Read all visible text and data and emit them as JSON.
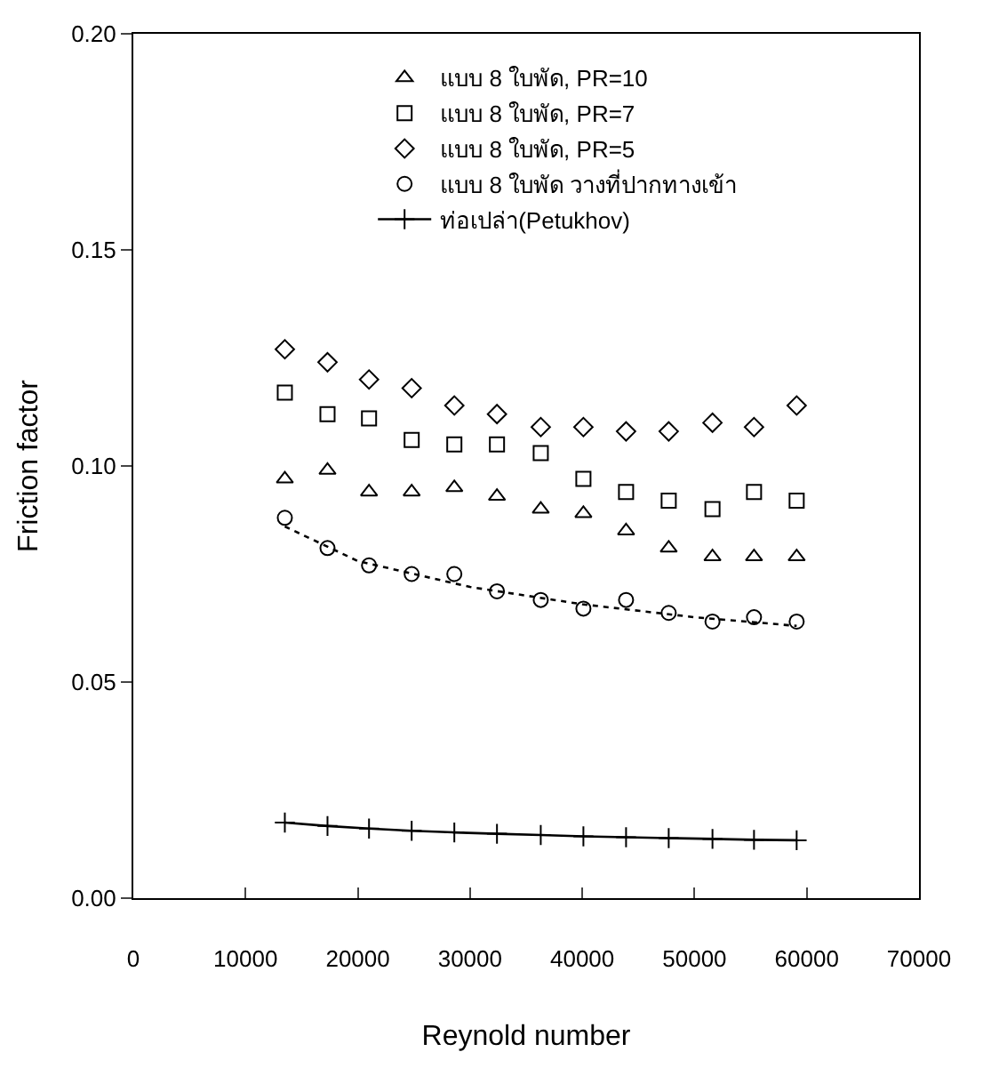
{
  "chart_data": {
    "type": "scatter",
    "xlabel": "Reynold number",
    "ylabel": "Friction factor",
    "x": [
      13500,
      17300,
      21000,
      24800,
      28600,
      32400,
      36300,
      40100,
      43900,
      47700,
      51600,
      55300,
      59100
    ],
    "xlim": [
      0,
      70000
    ],
    "xticks": [
      0,
      10000,
      20000,
      30000,
      40000,
      50000,
      60000,
      70000
    ],
    "ylim": [
      0,
      0.2
    ],
    "yticks": [
      {
        "value": 0,
        "label": "0.00"
      },
      {
        "value": 0.05,
        "label": "0.05"
      },
      {
        "value": 0.1,
        "label": "0.10"
      },
      {
        "value": 0.15,
        "label": "0.15"
      },
      {
        "value": 0.2,
        "label": "0.20"
      }
    ],
    "legend": "top right",
    "series": [
      {
        "name": "แบบ 8 ใบพัด, PR=10",
        "color": "#000000",
        "marker": "triangle",
        "values": [
          0.097,
          0.099,
          0.094,
          0.094,
          0.095,
          0.093,
          0.09,
          0.089,
          0.085,
          0.081,
          0.079,
          0.079,
          0.079
        ]
      },
      {
        "name": "แบบ 8 ใบพัด, PR=7",
        "color": "#000000",
        "marker": "square",
        "values": [
          0.117,
          0.112,
          0.111,
          0.106,
          0.105,
          0.105,
          0.103,
          0.097,
          0.094,
          0.092,
          0.09,
          0.094,
          0.092
        ]
      },
      {
        "name": "แบบ 8 ใบพัด, PR=5",
        "color": "#000000",
        "marker": "diamond",
        "values": [
          0.127,
          0.124,
          0.12,
          0.118,
          0.114,
          0.112,
          0.109,
          0.109,
          0.108,
          0.108,
          0.11,
          0.109,
          0.114
        ]
      },
      {
        "name": "แบบ 8 ใบพัด วางที่ปากทางเข้า",
        "color": "#000000",
        "marker": "circle",
        "values": [
          0.088,
          0.081,
          0.077,
          0.075,
          0.075,
          0.071,
          0.069,
          0.067,
          0.069,
          0.066,
          0.064,
          0.065,
          0.064
        ]
      },
      {
        "name": "ท่อเปล่า(Petukhov)",
        "type": "line",
        "color": "#000000",
        "marker": "cross",
        "line_style": "solid",
        "values": [
          0.0175,
          0.0167,
          0.0161,
          0.0156,
          0.0152,
          0.0149,
          0.0146,
          0.0143,
          0.0141,
          0.0139,
          0.0137,
          0.0135,
          0.0134
        ]
      },
      {
        "type": "line",
        "color": "#000000",
        "marker": "none",
        "line_style": "dotted",
        "x": [
          13500,
          20000,
          30000,
          40000,
          50000,
          59100
        ],
        "values": [
          0.086,
          0.078,
          0.072,
          0.068,
          0.065,
          0.063
        ]
      }
    ]
  }
}
